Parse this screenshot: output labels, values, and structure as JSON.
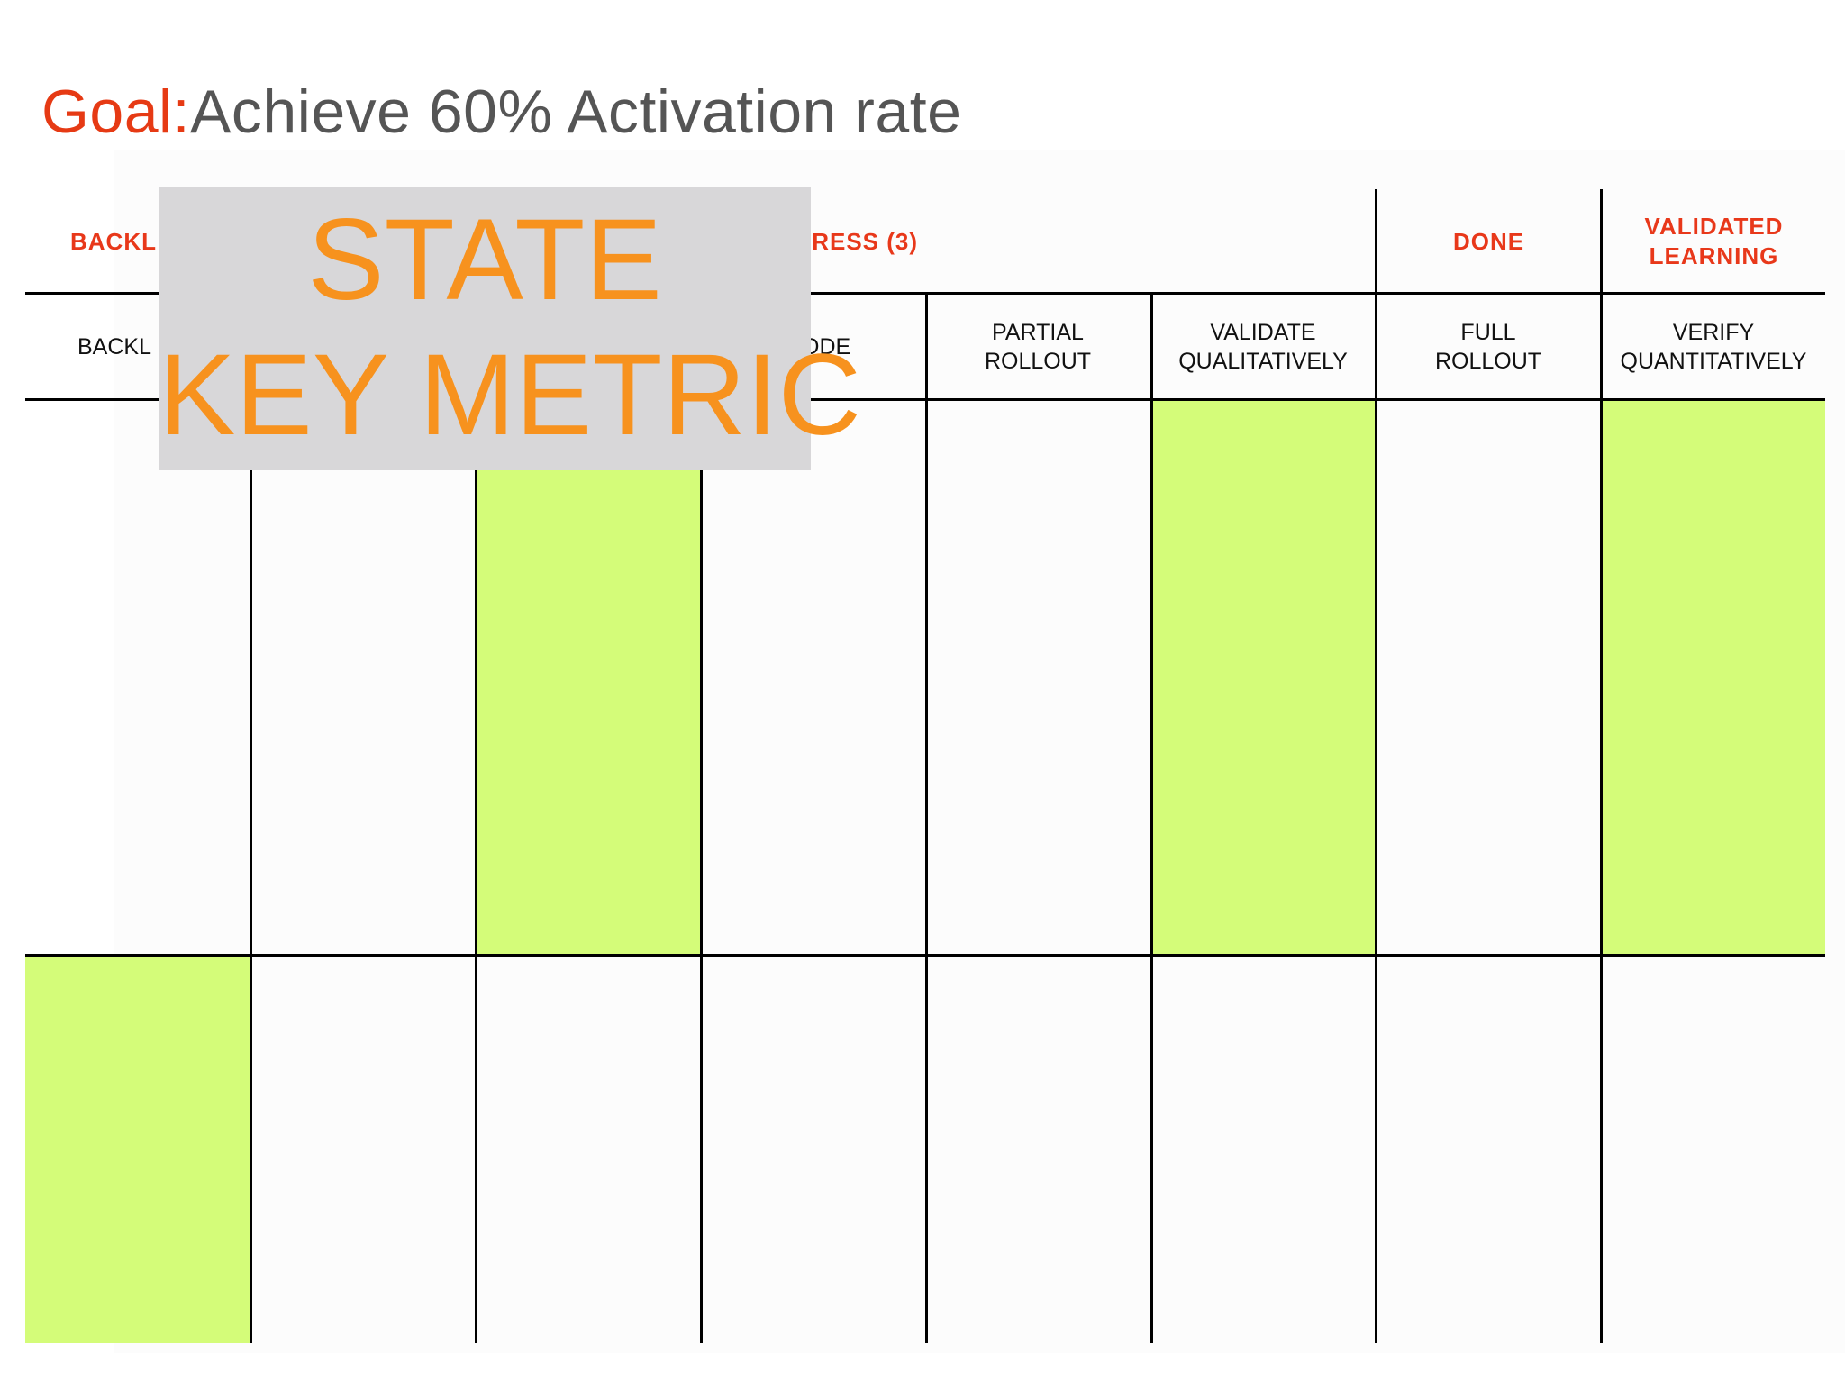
{
  "title": {
    "goal_label": "Goal:",
    "goal_text": "Achieve 60% Activation rate"
  },
  "board": {
    "group_headers": {
      "backlog": "BACKL",
      "in_progress": "GRESS (3)",
      "done": "DONE",
      "validated_learning_line1": "VALIDATED",
      "validated_learning_line2": "LEARNING"
    },
    "columns": [
      {
        "line1": "BACKL",
        "line2": ""
      },
      {
        "line1": "",
        "line2": ""
      },
      {
        "line1": "",
        "line2": ""
      },
      {
        "line1": "ODE",
        "line2": ""
      },
      {
        "line1": "PARTIAL",
        "line2": "ROLLOUT"
      },
      {
        "line1": "VALIDATE",
        "line2": "QUALITATIVELY"
      },
      {
        "line1": "FULL",
        "line2": "ROLLOUT"
      },
      {
        "line1": "VERIFY",
        "line2": "QUANTITATIVELY"
      }
    ],
    "highlight_color": "#d4fc79"
  },
  "overlay": {
    "line1": "STATE",
    "line2": "KEY METRIC",
    "text_color": "#f7921e",
    "bg_color": "#d8d7d9"
  }
}
